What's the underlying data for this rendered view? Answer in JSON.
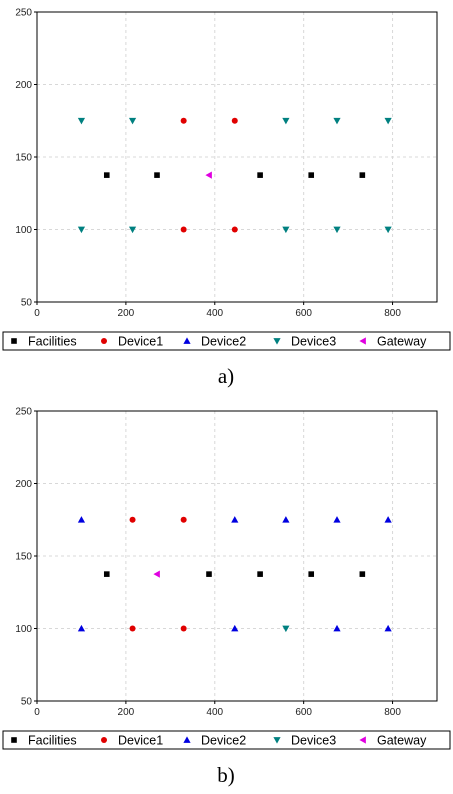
{
  "colors": {
    "Facilities": "#000000",
    "Device1": "#e00000",
    "Device2": "#0000e0",
    "Device3": "#008080",
    "Gateway": "#e000e0"
  },
  "chart_data": [
    {
      "type": "scatter",
      "caption": "a)",
      "xlim": [
        0,
        900
      ],
      "ylim": [
        50,
        250
      ],
      "xticks": [
        0,
        200,
        400,
        600,
        800
      ],
      "yticks": [
        50,
        100,
        150,
        200,
        250
      ],
      "grid": true,
      "legend_position": "bottom",
      "series": [
        {
          "name": "Facilities",
          "marker": "square",
          "x": [
            157,
            270,
            502,
            617,
            732
          ],
          "y": [
            137.5,
            137.5,
            137.5,
            137.5,
            137.5
          ]
        },
        {
          "name": "Device1",
          "marker": "circle",
          "x": [
            330,
            445,
            330,
            445
          ],
          "y": [
            175,
            175,
            100,
            100
          ]
        },
        {
          "name": "Device2",
          "marker": "triangle-up",
          "x": [],
          "y": []
        },
        {
          "name": "Device3",
          "marker": "triangle-down",
          "x": [
            100,
            215,
            560,
            675,
            790,
            100,
            215,
            560,
            675,
            790
          ],
          "y": [
            175,
            175,
            175,
            175,
            175,
            100,
            100,
            100,
            100,
            100
          ]
        },
        {
          "name": "Gateway",
          "marker": "triangle-left",
          "x": [
            387
          ],
          "y": [
            137.5
          ]
        }
      ]
    },
    {
      "type": "scatter",
      "caption": "b)",
      "xlim": [
        0,
        900
      ],
      "ylim": [
        50,
        250
      ],
      "xticks": [
        0,
        200,
        400,
        600,
        800
      ],
      "yticks": [
        50,
        100,
        150,
        200,
        250
      ],
      "grid": true,
      "legend_position": "bottom",
      "series": [
        {
          "name": "Facilities",
          "marker": "square",
          "x": [
            157,
            387,
            502,
            617,
            732
          ],
          "y": [
            137.5,
            137.5,
            137.5,
            137.5,
            137.5
          ]
        },
        {
          "name": "Device1",
          "marker": "circle",
          "x": [
            215,
            330,
            215,
            330
          ],
          "y": [
            175,
            175,
            100,
            100
          ]
        },
        {
          "name": "Device2",
          "marker": "triangle-up",
          "x": [
            100,
            445,
            560,
            675,
            790,
            100,
            445,
            675,
            790
          ],
          "y": [
            175,
            175,
            175,
            175,
            175,
            100,
            100,
            100,
            100
          ]
        },
        {
          "name": "Device3",
          "marker": "triangle-down",
          "x": [
            560
          ],
          "y": [
            100
          ]
        },
        {
          "name": "Gateway",
          "marker": "triangle-left",
          "x": [
            270
          ],
          "y": [
            137.5
          ]
        }
      ]
    }
  ]
}
